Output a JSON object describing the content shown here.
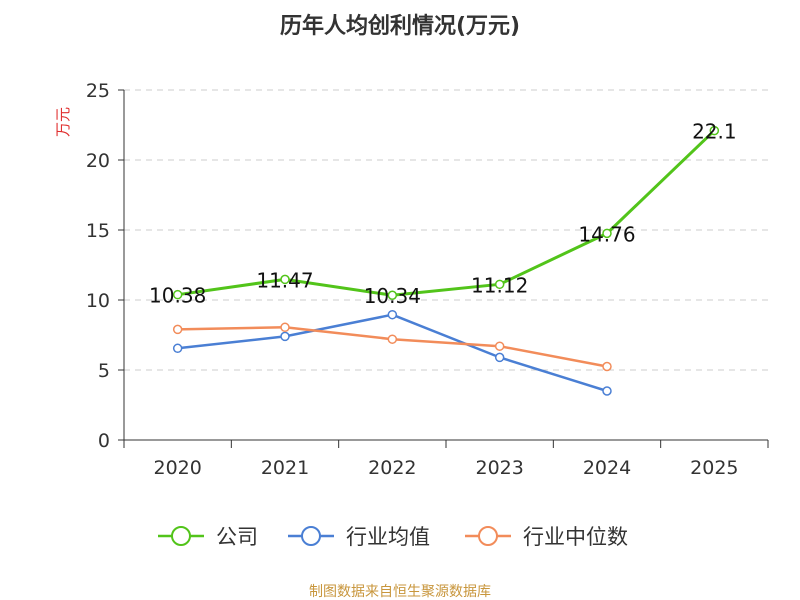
{
  "chart_data": {
    "type": "line",
    "title": "历年人均创利情况(万元)",
    "ylabel": "万元",
    "xlabel": "",
    "categories": [
      "2020",
      "2021",
      "2022",
      "2023",
      "2024",
      "2025"
    ],
    "ylim": [
      0,
      25
    ],
    "yticks": [
      0,
      5,
      10,
      15,
      20,
      25
    ],
    "grid": true,
    "legend_position": "bottom",
    "series": [
      {
        "name": "公司",
        "color": "#52c41a",
        "values": [
          10.38,
          11.47,
          10.34,
          11.12,
          14.76,
          22.1
        ],
        "labels": [
          "10.38",
          "11.47",
          "10.34",
          "11.12",
          "14.76",
          "22.1"
        ]
      },
      {
        "name": "行业均值",
        "color": "#4a7fd4",
        "values": [
          6.55,
          7.4,
          8.95,
          5.9,
          3.5,
          null
        ]
      },
      {
        "name": "行业中位数",
        "color": "#f28c5a",
        "values": [
          7.9,
          8.05,
          7.2,
          6.7,
          5.25,
          null
        ]
      }
    ],
    "source": "制图数据来自恒生聚源数据库"
  }
}
